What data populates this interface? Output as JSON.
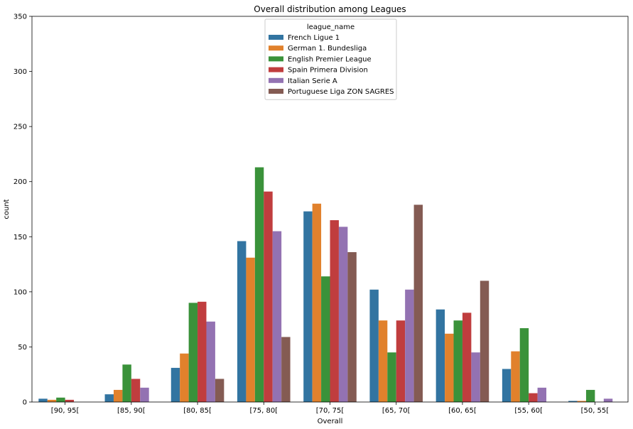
{
  "chart_data": {
    "type": "bar",
    "title": "Overall distribution among Leagues",
    "xlabel": "Overall",
    "ylabel": "count",
    "ylim": [
      0,
      350
    ],
    "yticks": [
      0,
      50,
      100,
      150,
      200,
      250,
      300,
      350
    ],
    "grid": false,
    "legend": {
      "title": "league_name",
      "position": "top-center"
    },
    "categories": [
      "[90, 95[",
      "[85, 90[",
      "[80, 85[",
      "[75, 80[",
      "[70, 75[",
      "[65, 70[",
      "[60, 65[",
      "[55, 60[",
      "[50, 55["
    ],
    "series": [
      {
        "name": "French Ligue 1",
        "color": "#3274a1",
        "values": [
          3,
          7,
          31,
          146,
          173,
          102,
          84,
          30,
          1
        ]
      },
      {
        "name": "German 1. Bundesliga",
        "color": "#e1812c",
        "values": [
          2,
          11,
          44,
          131,
          180,
          74,
          62,
          46,
          1
        ]
      },
      {
        "name": "English Premier League",
        "color": "#3a923a",
        "values": [
          4,
          34,
          90,
          213,
          114,
          45,
          74,
          67,
          11
        ]
      },
      {
        "name": "Spain Primera Division",
        "color": "#c03d3e",
        "values": [
          2,
          21,
          91,
          191,
          165,
          74,
          81,
          8,
          0
        ]
      },
      {
        "name": "Italian Serie A",
        "color": "#9372b2",
        "values": [
          0,
          13,
          73,
          155,
          159,
          102,
          45,
          13,
          3
        ]
      },
      {
        "name": "Portuguese Liga ZON SAGRES",
        "color": "#845b53",
        "values": [
          0,
          0,
          21,
          59,
          136,
          179,
          110,
          0,
          0
        ]
      }
    ]
  }
}
